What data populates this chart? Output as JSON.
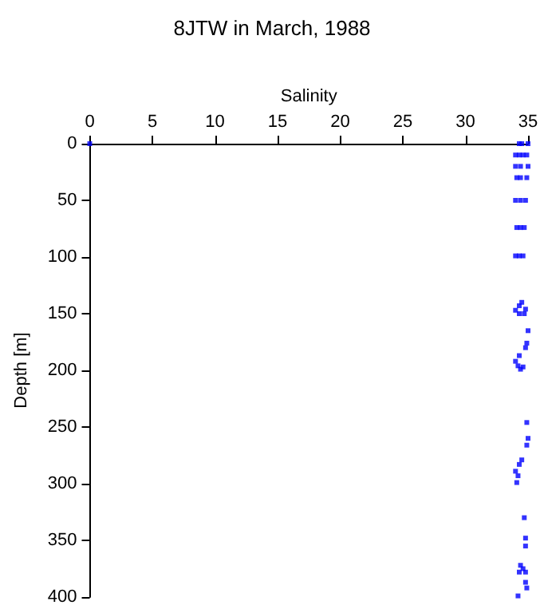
{
  "chart_data": {
    "type": "scatter",
    "title": "8JTW in March, 1988",
    "xlabel": "Salinity",
    "ylabel": "Depth [m]",
    "xlim": [
      0,
      35
    ],
    "xticks": [
      0,
      5,
      10,
      15,
      20,
      25,
      30,
      35
    ],
    "ylim": [
      400,
      0
    ],
    "yticks": [
      0,
      50,
      100,
      150,
      200,
      250,
      300,
      350,
      400
    ],
    "grid": false,
    "marker": "square",
    "series": [
      {
        "color": "#0000ff",
        "x": [
          0,
          34.3,
          34.5,
          35,
          34.0,
          34.3,
          34.6,
          34.9,
          34.0,
          34.4,
          35,
          34.1,
          34.4,
          34.9,
          34.0,
          34.4,
          34.8,
          34.1,
          34.4,
          34.7,
          34.0,
          34.3,
          34.6,
          34.5,
          34.3,
          34.0,
          34.3,
          34.7,
          34.8,
          35.0,
          34.9,
          34.8,
          34.3,
          34.0,
          34.2,
          34.4,
          34.6,
          34.9,
          35.0,
          34.9,
          34.5,
          34.3,
          34.0,
          34.2,
          34.1,
          34.7,
          34.8,
          34.8,
          34.4,
          34.3,
          34.8,
          34.6,
          34.8,
          34.9,
          34.2
        ],
        "values": [
          0,
          0,
          0,
          0,
          10,
          10,
          10,
          10,
          20,
          20,
          20,
          30,
          30,
          30,
          50,
          50,
          50,
          74,
          74,
          74,
          99,
          99,
          99,
          140,
          143,
          147,
          150,
          150,
          146,
          165,
          176,
          180,
          187,
          192,
          196,
          199,
          197,
          246,
          260,
          266,
          279,
          283,
          289,
          293,
          299,
          330,
          348,
          355,
          372,
          378,
          378,
          375,
          387,
          392,
          399
        ]
      }
    ]
  }
}
